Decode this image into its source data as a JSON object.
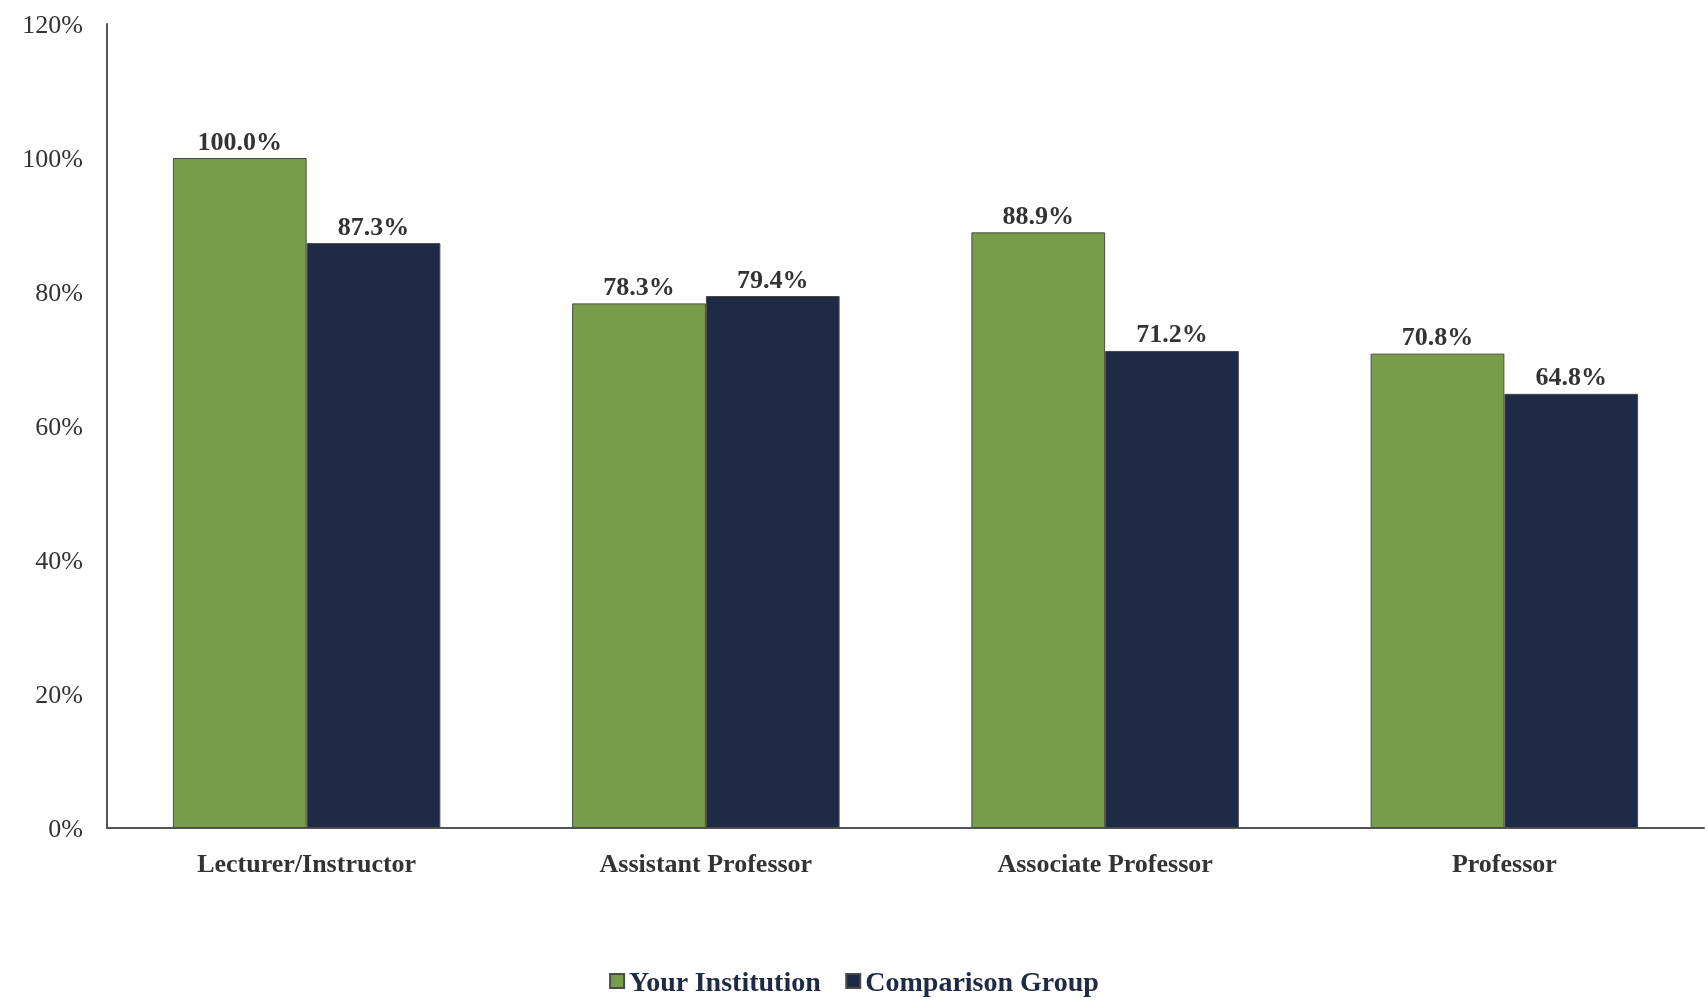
{
  "chart_data": {
    "type": "bar",
    "categories": [
      "Lecturer/Instructor",
      "Assistant Professor",
      "Associate Professor",
      "Professor"
    ],
    "series": [
      {
        "name": "Your Institution",
        "color": "#789d4a",
        "values": [
          100.0,
          78.3,
          88.9,
          70.8
        ],
        "value_labels": [
          "100.0%",
          "78.3%",
          "88.9%",
          "70.8%"
        ]
      },
      {
        "name": "Comparison Group",
        "color": "#1f2a44",
        "values": [
          87.3,
          79.4,
          71.2,
          64.8
        ],
        "value_labels": [
          "87.3%",
          "79.4%",
          "71.2%",
          "64.8%"
        ]
      }
    ],
    "ylim": [
      0,
      120
    ],
    "yticks": [
      {
        "value": 0,
        "label": "0%"
      },
      {
        "value": 20,
        "label": "20%"
      },
      {
        "value": 40,
        "label": "40%"
      },
      {
        "value": 60,
        "label": "60%"
      },
      {
        "value": 80,
        "label": "80%"
      },
      {
        "value": 100,
        "label": "100%"
      },
      {
        "value": 120,
        "label": "120%"
      }
    ],
    "grid": false,
    "legend": "bottom"
  }
}
